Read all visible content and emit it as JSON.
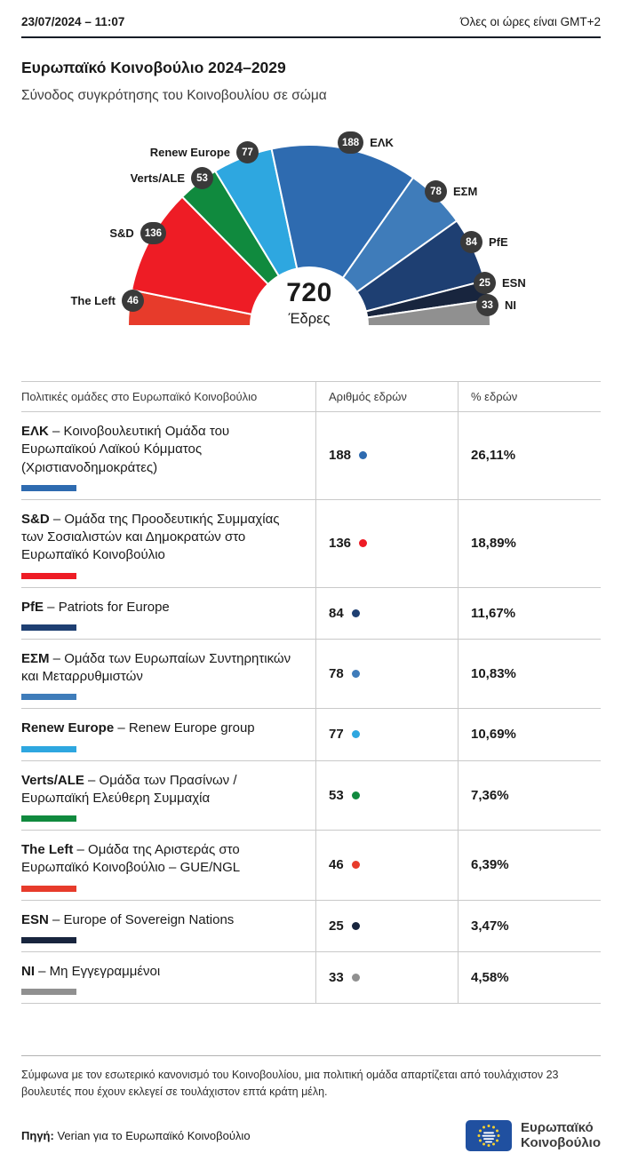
{
  "header": {
    "datetime": "23/07/2024 – 11:07",
    "timezone_note": "Όλες οι ώρες είναι GMT+2",
    "title": "Ευρωπαϊκό Κοινοβούλιο 2024–2029",
    "subtitle": "Σύνοδος συγκρότησης του Κοινοβουλίου σε σώμα"
  },
  "chart_data": {
    "type": "pie",
    "variant": "half-donut-hemicycle",
    "title": "Ευρωπαϊκό Κοινοβούλιο 2024–2029",
    "total_seats": 720,
    "center_label": "720",
    "center_sublabel": "Έδρες",
    "order_left_to_right": [
      "The Left",
      "S&D",
      "Verts/ALE",
      "Renew Europe",
      "ΕΛΚ",
      "ΕΣΜ",
      "PfE",
      "ESN",
      "NI"
    ],
    "groups": [
      {
        "id": "elk",
        "label": "ΕΛΚ",
        "seats": 188,
        "percent": "26,11%",
        "color": "#2e6bb0",
        "desc_rest": "– Κοινοβουλευτική Ομάδα του Ευρωπαϊκού Λαϊκού Κόμματος (Χριστιανοδημοκράτες)"
      },
      {
        "id": "sd",
        "label": "S&D",
        "seats": 136,
        "percent": "18,89%",
        "color": "#ee1c25",
        "desc_rest": "– Ομάδα της Προοδευτικής Συμμαχίας των Σοσιαλιστών και Δημοκρατών στο Ευρωπαϊκό Κοινοβούλιο"
      },
      {
        "id": "pfe",
        "label": "PfE",
        "seats": 84,
        "percent": "11,67%",
        "color": "#1e3f72",
        "desc_rest": "– Patriots for Europe"
      },
      {
        "id": "esm",
        "label": "ΕΣΜ",
        "seats": 78,
        "percent": "10,83%",
        "color": "#3f7cba",
        "desc_rest": "– Ομάδα των Ευρωπαίων Συντηρητικών και Μεταρρυθμιστών"
      },
      {
        "id": "renew",
        "label": "Renew Europe",
        "seats": 77,
        "percent": "10,69%",
        "color": "#2ea7e0",
        "desc_rest": "– Renew Europe group"
      },
      {
        "id": "verts",
        "label": "Verts/ALE",
        "seats": 53,
        "percent": "7,36%",
        "color": "#108a3e",
        "desc_rest": "– Ομάδα των Πρασίνων / Ευρωπαϊκή Ελεύθερη Συμμαχία"
      },
      {
        "id": "left",
        "label": "The Left",
        "seats": 46,
        "percent": "6,39%",
        "color": "#e73b2b",
        "desc_rest": "– Ομάδα της Αριστεράς στο Ευρωπαϊκό Κοινοβούλιο – GUE/NGL"
      },
      {
        "id": "esn",
        "label": "ESN",
        "seats": 25,
        "percent": "3,47%",
        "color": "#18253e",
        "desc_rest": "– Europe of Sovereign Nations"
      },
      {
        "id": "ni",
        "label": "NI",
        "seats": 33,
        "percent": "4,58%",
        "color": "#909090",
        "desc_rest": "– Μη Εγγεγραμμένοι"
      }
    ]
  },
  "table": {
    "headers": [
      "Πολιτικές ομάδες στο Ευρωπαϊκό Κοινοβούλιο",
      "Αριθμός εδρών",
      "% εδρών"
    ]
  },
  "footer": {
    "note": "Σύμφωνα με τον εσωτερικό κανονισμό του Κοινοβουλίου, μια πολιτική ομάδα απαρτίζεται από τουλάχιστον 23 βουλευτές που έχουν εκλεγεί σε τουλάχιστον επτά κράτη μέλη.",
    "source_label": "Πηγή:",
    "source_text": " Verian για το Ευρωπαϊκό Κοινοβούλιο",
    "logo_line1": "Ευρωπαϊκό",
    "logo_line2": "Κοινοβούλιο"
  }
}
